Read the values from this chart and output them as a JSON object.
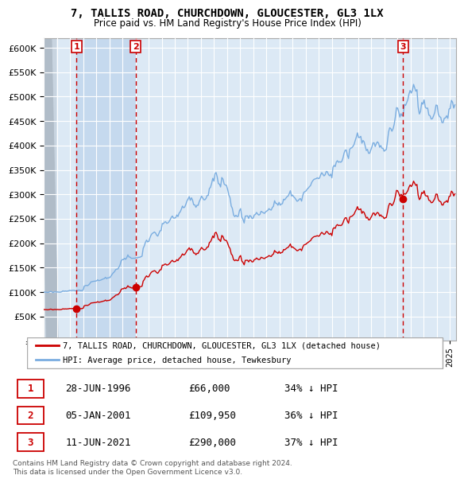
{
  "title1": "7, TALLIS ROAD, CHURCHDOWN, GLOUCESTER, GL3 1LX",
  "title2": "Price paid vs. HM Land Registry's House Price Index (HPI)",
  "legend_red": "7, TALLIS ROAD, CHURCHDOWN, GLOUCESTER, GL3 1LX (detached house)",
  "legend_blue": "HPI: Average price, detached house, Tewkesbury",
  "transactions": [
    {
      "label": "1",
      "date": "28-JUN-1996",
      "price": 66000,
      "pct": "34% ↓ HPI",
      "x_year": 1996.49
    },
    {
      "label": "2",
      "date": "05-JAN-2001",
      "price": 109950,
      "pct": "36% ↓ HPI",
      "x_year": 2001.01
    },
    {
      "label": "3",
      "date": "11-JUN-2021",
      "price": 290000,
      "pct": "37% ↓ HPI",
      "x_year": 2021.44
    }
  ],
  "footer": "Contains HM Land Registry data © Crown copyright and database right 2024.\nThis data is licensed under the Open Government Licence v3.0.",
  "ylim": [
    0,
    620000
  ],
  "xlim_start": 1994.0,
  "xlim_end": 2025.5,
  "bg_color": "#dce9f5",
  "shaded_region_color": "#c5d9ee",
  "grid_color": "#ffffff",
  "red_line_color": "#cc0000",
  "blue_line_color": "#7aade0"
}
